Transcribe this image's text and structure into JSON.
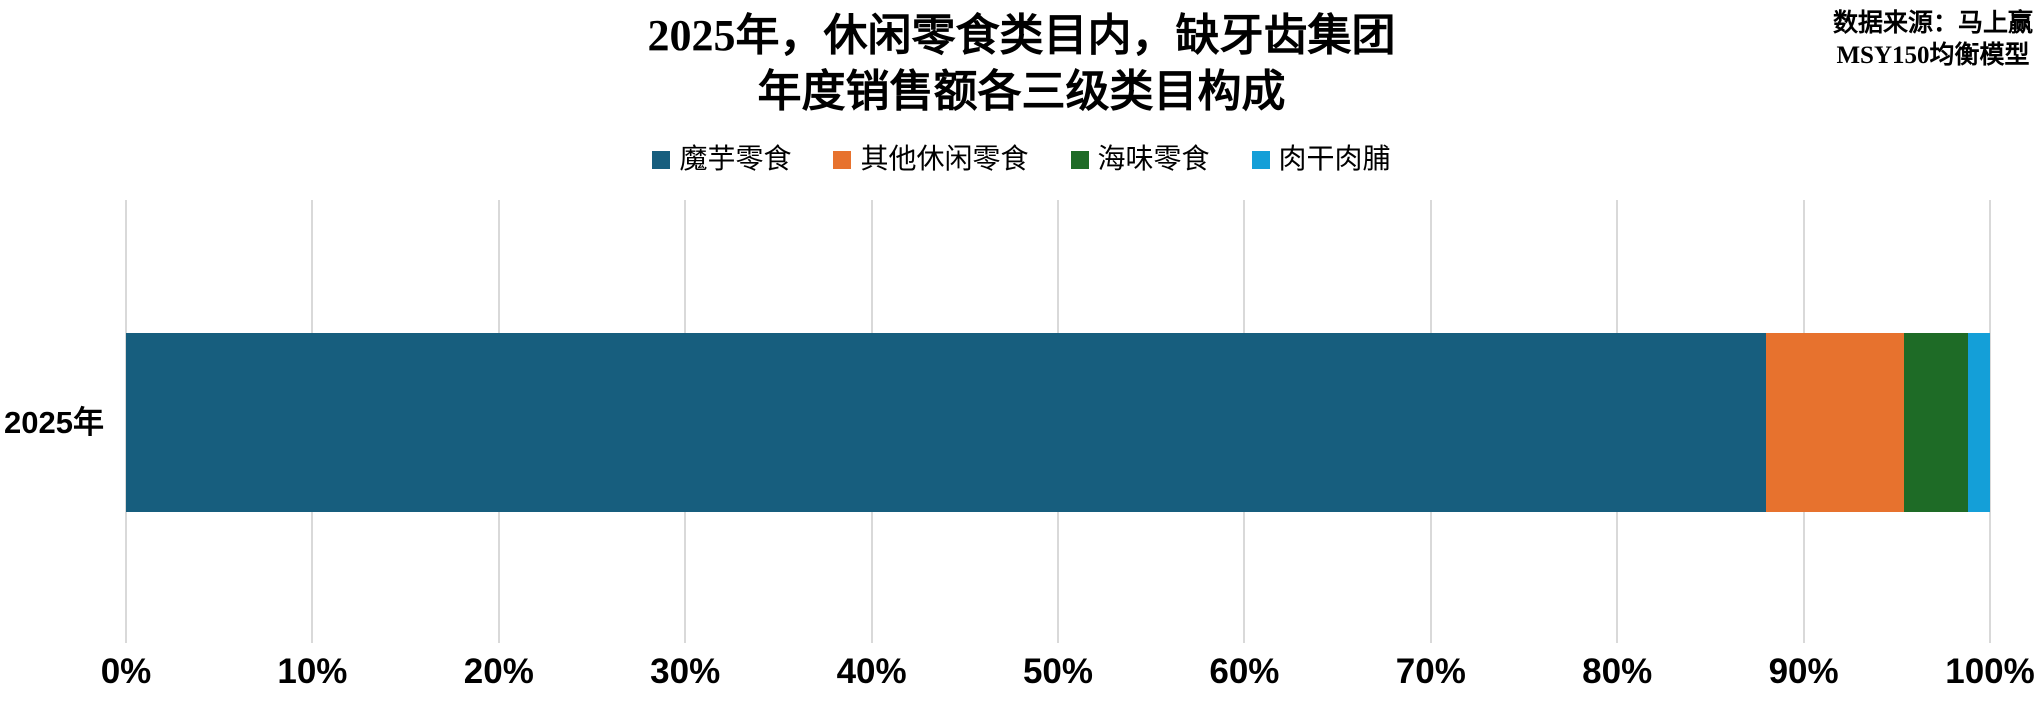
{
  "title": {
    "line1": "2025年，休闲零食类目内，缺牙齿集团",
    "line2": "年度销售额各三级类目构成"
  },
  "source": {
    "line1": "数据来源：马上赢",
    "line2": "MSY150均衡模型"
  },
  "chart_data": {
    "type": "bar",
    "orientation": "horizontal",
    "stacked": true,
    "title": "2025年，休闲零食类目内，缺牙齿集团 年度销售额各三级类目构成",
    "categories": [
      "2025年"
    ],
    "series": [
      {
        "name": "魔芋零食",
        "color": "#175e7e",
        "values": [
          88.0
        ]
      },
      {
        "name": "其他休闲零食",
        "color": "#e7722e",
        "values": [
          7.4
        ]
      },
      {
        "name": "海味零食",
        "color": "#1e6b26",
        "values": [
          3.4
        ]
      },
      {
        "name": "肉干肉脯",
        "color": "#149fd8",
        "values": [
          1.2
        ]
      }
    ],
    "xlim": [
      0,
      100
    ],
    "x_ticks": [
      "0%",
      "10%",
      "20%",
      "30%",
      "40%",
      "50%",
      "60%",
      "70%",
      "80%",
      "90%",
      "100%"
    ],
    "xlabel": "",
    "ylabel": "",
    "grid": "vertical",
    "gridline_color": "#d9d9d9",
    "legend_position": "top"
  }
}
